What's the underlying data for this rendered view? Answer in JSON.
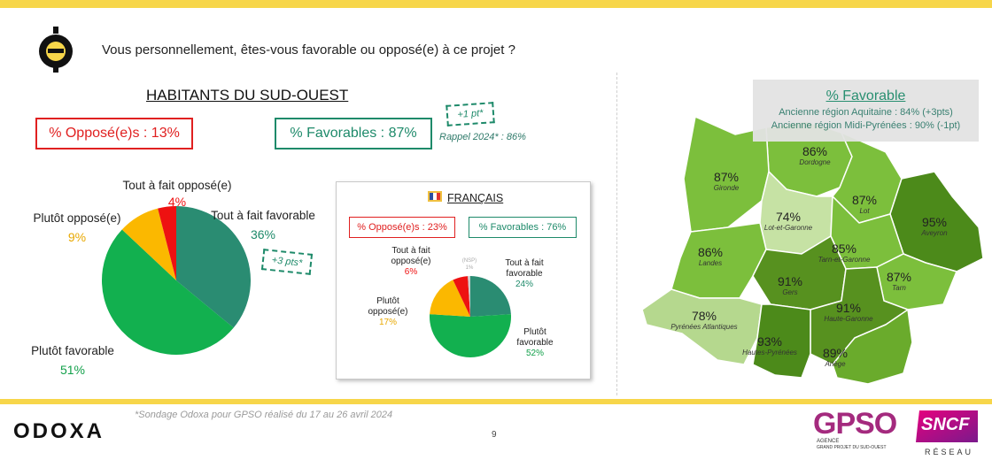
{
  "header": {
    "question": "Vous personnellement, êtes-vous favorable ou opposé(e) à ce projet ?"
  },
  "sud_ouest": {
    "title": "HABITANTS DU SUD-OUEST",
    "opposed_box": "% Opposé(e)s : 13%",
    "favorable_box": "% Favorables : 87%",
    "delta_favorable": "+1 pt*",
    "rappel": "Rappel 2024* : 86%",
    "delta_tout_fait": "+3 pts*"
  },
  "francais": {
    "title": "FRANÇAIS",
    "opposed_box": "% Opposé(e)s : 23%",
    "favorable_box": "% Favorables : 76%"
  },
  "chart_data": [
    {
      "type": "pie",
      "title": "HABITANTS DU SUD-OUEST",
      "slices": [
        {
          "label": "Tout à fait favorable",
          "value": 36,
          "value_label": "36%",
          "color": "#2a8c72"
        },
        {
          "label": "Plutôt favorable",
          "value": 51,
          "value_label": "51%",
          "color": "#12b04f"
        },
        {
          "label": "Plutôt opposé(e)",
          "value": 9,
          "value_label": "9%",
          "color": "#fbb800"
        },
        {
          "label": "Tout à fait opposé(e)",
          "value": 4,
          "value_label": "4%",
          "color": "#ee1111"
        }
      ]
    },
    {
      "type": "pie",
      "title": "FRANÇAIS",
      "slices": [
        {
          "label": "Tout à fait favorable",
          "value": 24,
          "value_label": "24%",
          "color": "#2a8c72"
        },
        {
          "label": "Plutôt favorable",
          "value": 52,
          "value_label": "52%",
          "color": "#12b04f"
        },
        {
          "label": "Plutôt opposé(e)",
          "value": 17,
          "value_label": "17%",
          "color": "#fbb800"
        },
        {
          "label": "Tout à fait opposé(e)",
          "value": 6,
          "value_label": "6%",
          "color": "#ee1111"
        },
        {
          "label": "(NSP)",
          "value": 1,
          "value_label": "1%",
          "color": "#cccccc"
        }
      ]
    }
  ],
  "map": {
    "legend_title": "% Favorable",
    "legend_line1": "Ancienne région Aquitaine : 84% (+3pts)",
    "legend_line2": "Ancienne région Midi-Pyrénées : 90% (-1pt)",
    "departments": [
      {
        "name": "Dordogne",
        "pct": "86%",
        "color": "#7cbf3c"
      },
      {
        "name": "Gironde",
        "pct": "87%",
        "color": "#7cbf3c"
      },
      {
        "name": "Lot",
        "pct": "87%",
        "color": "#7cbf3c"
      },
      {
        "name": "Lot-et-Garonne",
        "pct": "74%",
        "color": "#c6e2a4"
      },
      {
        "name": "Aveyron",
        "pct": "95%",
        "color": "#4c8a1a"
      },
      {
        "name": "Landes",
        "pct": "86%",
        "color": "#7cbf3c"
      },
      {
        "name": "Tarn-et-Garonne",
        "pct": "85%",
        "color": "#7cbf3c"
      },
      {
        "name": "Gers",
        "pct": "91%",
        "color": "#57911f"
      },
      {
        "name": "Tarn",
        "pct": "87%",
        "color": "#7cbf3c"
      },
      {
        "name": "Pyrénées Atlantiques",
        "pct": "78%",
        "color": "#b5d88e"
      },
      {
        "name": "Haute-Garonne",
        "pct": "91%",
        "color": "#57911f"
      },
      {
        "name": "Hautes-Pyrénées",
        "pct": "93%",
        "color": "#4c8a1a"
      },
      {
        "name": "Ariège",
        "pct": "89%",
        "color": "#6aab2c"
      }
    ]
  },
  "footer": {
    "footnote": "*Sondage Odoxa pour GPSO réalisé du 17 au 26 avril 2024",
    "page": "9",
    "odoxa": "ODOXA",
    "gpso": "GPSO",
    "gpso_sub1": "AGENCE",
    "gpso_sub2": "GRAND PROJET DU SUD-OUEST",
    "sncf": "SNCF",
    "sncf_sub": "RÉSEAU"
  }
}
